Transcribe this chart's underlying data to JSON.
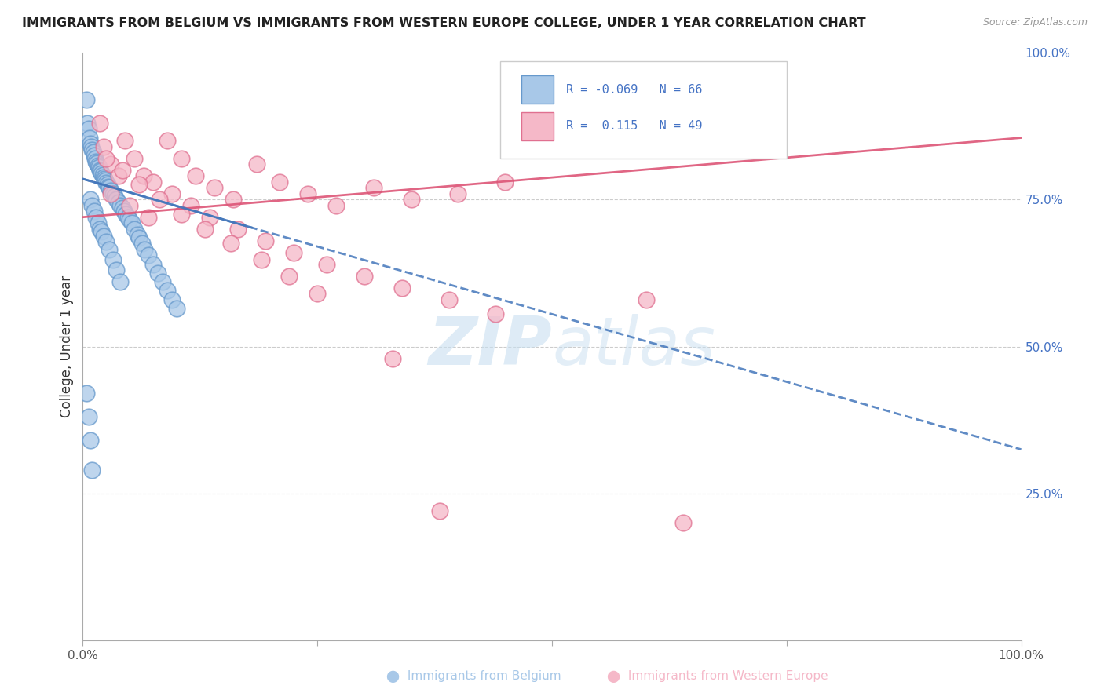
{
  "title": "IMMIGRANTS FROM BELGIUM VS IMMIGRANTS FROM WESTERN EUROPE COLLEGE, UNDER 1 YEAR CORRELATION CHART",
  "source": "Source: ZipAtlas.com",
  "ylabel": "College, Under 1 year",
  "xlim": [
    0,
    1
  ],
  "ylim": [
    0,
    1
  ],
  "ytick_vals": [
    0.25,
    0.5,
    0.75,
    1.0
  ],
  "ytick_labels": [
    "25.0%",
    "50.0%",
    "75.0%",
    "100.0%"
  ],
  "legend_blue_r": "-0.069",
  "legend_blue_n": "66",
  "legend_pink_r": "0.115",
  "legend_pink_n": "49",
  "blue_dot_color": "#A8C8E8",
  "blue_dot_edge": "#6699CC",
  "pink_dot_color": "#F5B8C8",
  "pink_dot_edge": "#E07090",
  "blue_line_color": "#4477BB",
  "pink_line_color": "#DD5577",
  "watermark_color": "#C8DFF0",
  "grid_color": "#CCCCCC",
  "right_axis_color": "#4472C4",
  "title_color": "#222222",
  "source_color": "#999999",
  "legend_text_color": "#4472C4",
  "blue_x": [
    0.004,
    0.005,
    0.006,
    0.007,
    0.008,
    0.009,
    0.01,
    0.011,
    0.012,
    0.013,
    0.014,
    0.015,
    0.016,
    0.017,
    0.018,
    0.019,
    0.02,
    0.021,
    0.022,
    0.023,
    0.024,
    0.025,
    0.026,
    0.027,
    0.028,
    0.03,
    0.032,
    0.034,
    0.036,
    0.038,
    0.04,
    0.042,
    0.044,
    0.046,
    0.048,
    0.05,
    0.052,
    0.055,
    0.058,
    0.06,
    0.063,
    0.066,
    0.07,
    0.075,
    0.08,
    0.085,
    0.09,
    0.095,
    0.1,
    0.008,
    0.01,
    0.012,
    0.014,
    0.016,
    0.018,
    0.02,
    0.022,
    0.025,
    0.028,
    0.032,
    0.036,
    0.04,
    0.004,
    0.006,
    0.008,
    0.01
  ],
  "blue_y": [
    0.92,
    0.88,
    0.87,
    0.855,
    0.845,
    0.84,
    0.835,
    0.83,
    0.825,
    0.82,
    0.815,
    0.812,
    0.808,
    0.805,
    0.8,
    0.798,
    0.795,
    0.792,
    0.788,
    0.785,
    0.782,
    0.778,
    0.775,
    0.772,
    0.77,
    0.765,
    0.76,
    0.755,
    0.75,
    0.745,
    0.74,
    0.735,
    0.73,
    0.725,
    0.72,
    0.715,
    0.71,
    0.7,
    0.69,
    0.685,
    0.675,
    0.665,
    0.655,
    0.64,
    0.625,
    0.61,
    0.595,
    0.58,
    0.565,
    0.75,
    0.74,
    0.73,
    0.72,
    0.71,
    0.7,
    0.695,
    0.688,
    0.678,
    0.665,
    0.648,
    0.63,
    0.61,
    0.42,
    0.38,
    0.34,
    0.29
  ],
  "pink_x": [
    0.018,
    0.022,
    0.03,
    0.038,
    0.045,
    0.055,
    0.065,
    0.075,
    0.09,
    0.105,
    0.12,
    0.14,
    0.16,
    0.185,
    0.21,
    0.24,
    0.27,
    0.31,
    0.35,
    0.4,
    0.45,
    0.03,
    0.05,
    0.07,
    0.095,
    0.115,
    0.135,
    0.165,
    0.195,
    0.225,
    0.26,
    0.3,
    0.34,
    0.39,
    0.44,
    0.025,
    0.042,
    0.06,
    0.082,
    0.105,
    0.13,
    0.158,
    0.19,
    0.22,
    0.25,
    0.6,
    0.64,
    0.33,
    0.38
  ],
  "pink_y": [
    0.88,
    0.84,
    0.81,
    0.79,
    0.85,
    0.82,
    0.79,
    0.78,
    0.85,
    0.82,
    0.79,
    0.77,
    0.75,
    0.81,
    0.78,
    0.76,
    0.74,
    0.77,
    0.75,
    0.76,
    0.78,
    0.76,
    0.74,
    0.72,
    0.76,
    0.74,
    0.72,
    0.7,
    0.68,
    0.66,
    0.64,
    0.62,
    0.6,
    0.58,
    0.555,
    0.82,
    0.8,
    0.775,
    0.75,
    0.725,
    0.7,
    0.675,
    0.648,
    0.62,
    0.59,
    0.58,
    0.2,
    0.48,
    0.22
  ],
  "trend_blue_x0": 0.0,
  "trend_blue_y0": 0.785,
  "trend_blue_x1": 1.0,
  "trend_blue_y1": 0.325,
  "trend_pink_x0": 0.0,
  "trend_pink_y0": 0.72,
  "trend_pink_x1": 1.0,
  "trend_pink_y1": 0.855
}
